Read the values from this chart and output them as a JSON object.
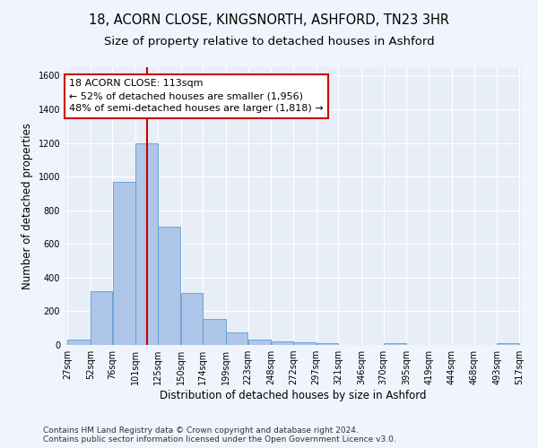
{
  "title_line1": "18, ACORN CLOSE, KINGSNORTH, ASHFORD, TN23 3HR",
  "title_line2": "Size of property relative to detached houses in Ashford",
  "xlabel": "Distribution of detached houses by size in Ashford",
  "ylabel": "Number of detached properties",
  "footer_line1": "Contains HM Land Registry data © Crown copyright and database right 2024.",
  "footer_line2": "Contains public sector information licensed under the Open Government Licence v3.0.",
  "annotation_line1": "18 ACORN CLOSE: 113sqm",
  "annotation_line2": "← 52% of detached houses are smaller (1,956)",
  "annotation_line3": "48% of semi-detached houses are larger (1,818) →",
  "bar_color": "#aec6e8",
  "bar_edge_color": "#5b9bd5",
  "reference_line_x": 113,
  "reference_line_color": "#cc0000",
  "bins": [
    27,
    52,
    76,
    101,
    125,
    150,
    174,
    199,
    223,
    248,
    272,
    297,
    321,
    346,
    370,
    395,
    419,
    444,
    468,
    493,
    517
  ],
  "bar_heights": [
    30,
    320,
    970,
    1200,
    700,
    310,
    155,
    75,
    30,
    20,
    15,
    10,
    0,
    0,
    10,
    0,
    0,
    0,
    0,
    10
  ],
  "ylim": [
    0,
    1650
  ],
  "yticks": [
    0,
    200,
    400,
    600,
    800,
    1000,
    1200,
    1400,
    1600
  ],
  "background_color": "#e8eef8",
  "fig_background_color": "#f0f4fc",
  "grid_color": "#ffffff",
  "title_fontsize": 10.5,
  "subtitle_fontsize": 9.5,
  "axis_label_fontsize": 8.5,
  "tick_fontsize": 7,
  "footer_fontsize": 6.5,
  "annotation_fontsize": 8
}
